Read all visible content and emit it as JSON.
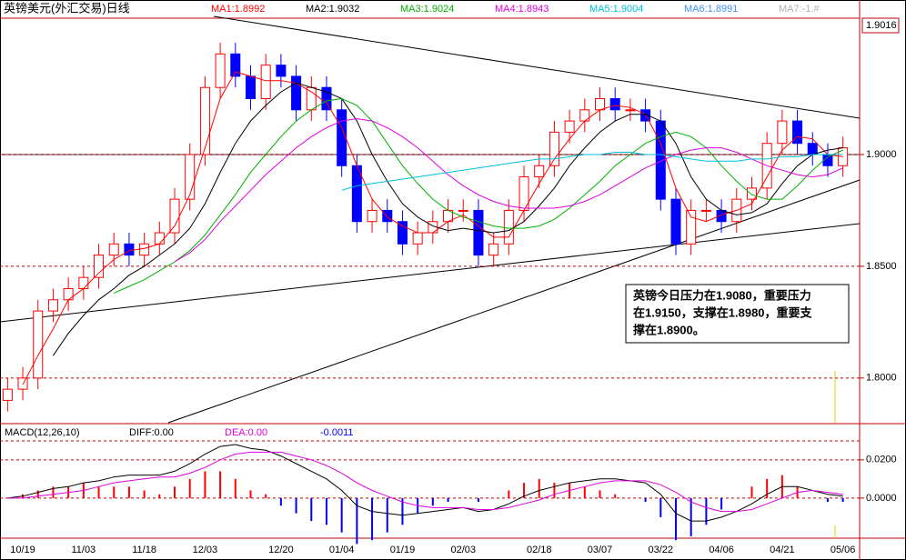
{
  "chart_data": [
    {
      "type": "candlestick",
      "title": "英镑美元(外汇交易)日线",
      "open": [
        1.79,
        1.795,
        1.8,
        1.83,
        1.835,
        1.84,
        1.845,
        1.855,
        1.86,
        1.855,
        1.86,
        1.865,
        1.88,
        1.9,
        1.93,
        1.945,
        1.935,
        1.925,
        1.94,
        1.935,
        1.92,
        1.93,
        1.92,
        1.895,
        1.87,
        1.875,
        1.87,
        1.86,
        1.865,
        1.87,
        1.875,
        1.875,
        1.855,
        1.86,
        1.875,
        1.89,
        1.895,
        1.91,
        1.915,
        1.92,
        1.925,
        1.92,
        1.92,
        1.915,
        1.88,
        1.86,
        1.875,
        1.875,
        1.87,
        1.88,
        1.885,
        1.905,
        1.915,
        1.905,
        1.9,
        1.895
      ],
      "high": [
        1.8,
        1.805,
        1.835,
        1.84,
        1.845,
        1.85,
        1.86,
        1.865,
        1.865,
        1.865,
        1.87,
        1.885,
        1.905,
        1.935,
        1.95,
        1.95,
        1.94,
        1.945,
        1.945,
        1.94,
        1.935,
        1.935,
        1.925,
        1.9,
        1.88,
        1.88,
        1.875,
        1.87,
        1.875,
        1.88,
        1.88,
        1.88,
        1.865,
        1.88,
        1.895,
        1.9,
        1.915,
        1.92,
        1.925,
        1.93,
        1.93,
        1.925,
        1.925,
        1.92,
        1.885,
        1.88,
        1.88,
        1.88,
        1.885,
        1.89,
        1.91,
        1.92,
        1.92,
        1.91,
        1.905,
        1.908
      ],
      "low": [
        1.785,
        1.79,
        1.795,
        1.825,
        1.83,
        1.835,
        1.84,
        1.85,
        1.85,
        1.85,
        1.855,
        1.86,
        1.875,
        1.895,
        1.925,
        1.93,
        1.92,
        1.92,
        1.93,
        1.915,
        1.915,
        1.915,
        1.89,
        1.865,
        1.865,
        1.865,
        1.855,
        1.855,
        1.86,
        1.865,
        1.87,
        1.85,
        1.85,
        1.855,
        1.87,
        1.885,
        1.89,
        1.905,
        1.91,
        1.915,
        1.915,
        1.915,
        1.91,
        1.875,
        1.855,
        1.855,
        1.87,
        1.865,
        1.865,
        1.875,
        1.88,
        1.9,
        1.9,
        1.895,
        1.89,
        1.89
      ],
      "close": [
        1.795,
        1.8,
        1.83,
        1.835,
        1.84,
        1.845,
        1.855,
        1.86,
        1.855,
        1.86,
        1.865,
        1.88,
        1.9,
        1.93,
        1.945,
        1.935,
        1.925,
        1.94,
        1.935,
        1.92,
        1.93,
        1.92,
        1.895,
        1.87,
        1.875,
        1.87,
        1.86,
        1.865,
        1.87,
        1.875,
        1.875,
        1.855,
        1.86,
        1.875,
        1.89,
        1.895,
        1.91,
        1.915,
        1.92,
        1.925,
        1.92,
        1.92,
        1.915,
        1.88,
        1.86,
        1.875,
        1.875,
        1.87,
        1.88,
        1.885,
        1.905,
        1.915,
        1.905,
        1.9,
        1.895,
        1.903
      ],
      "up_color": "#ff0000",
      "down_color": "#0000ff",
      "series": [
        {
          "name": "MA1:1.8992",
          "color": "#ff0000",
          "values": [
            null,
            1.797,
            1.81,
            1.822,
            1.835,
            1.84,
            1.847,
            1.853,
            1.857,
            1.858,
            1.86,
            1.868,
            1.882,
            1.903,
            1.925,
            1.937,
            1.935,
            1.933,
            1.933,
            1.932,
            1.928,
            1.923,
            1.912,
            1.895,
            1.88,
            1.872,
            1.868,
            1.865,
            1.865,
            1.87,
            1.873,
            1.868,
            1.863,
            1.863,
            1.875,
            1.887,
            1.898,
            1.907,
            1.915,
            1.92,
            1.922,
            1.921,
            1.918,
            1.905,
            1.885,
            1.872,
            1.87,
            1.873,
            1.875,
            1.878,
            1.89,
            1.902,
            1.908,
            1.907,
            1.9,
            1.899
          ]
        },
        {
          "name": "MA2:1.9032",
          "color": "#000000",
          "values": [
            null,
            null,
            null,
            1.81,
            1.82,
            1.828,
            1.835,
            1.84,
            1.846,
            1.85,
            1.855,
            1.86,
            1.867,
            1.878,
            1.892,
            1.905,
            1.915,
            1.922,
            1.928,
            1.932,
            1.93,
            1.928,
            1.925,
            1.915,
            1.9,
            1.888,
            1.878,
            1.872,
            1.868,
            1.866,
            1.867,
            1.866,
            1.865,
            1.866,
            1.87,
            1.877,
            1.885,
            1.895,
            1.903,
            1.91,
            1.915,
            1.918,
            1.918,
            1.915,
            1.905,
            1.89,
            1.88,
            1.875,
            1.873,
            1.874,
            1.878,
            1.887,
            1.895,
            1.9,
            1.902,
            1.903
          ]
        },
        {
          "name": "MA3:1.9024",
          "color": "#00b000",
          "values": [
            null,
            null,
            null,
            null,
            null,
            null,
            null,
            1.838,
            1.841,
            1.844,
            1.848,
            1.852,
            1.857,
            1.864,
            1.873,
            1.882,
            1.892,
            1.9,
            1.908,
            1.915,
            1.92,
            1.924,
            1.925,
            1.922,
            1.915,
            1.905,
            1.895,
            1.887,
            1.88,
            1.875,
            1.872,
            1.87,
            1.868,
            1.867,
            1.867,
            1.868,
            1.871,
            1.876,
            1.882,
            1.888,
            1.895,
            1.9,
            1.905,
            1.908,
            1.91,
            1.908,
            1.903,
            1.895,
            1.888,
            1.882,
            1.88,
            1.88,
            1.886,
            1.893,
            1.899,
            1.902
          ]
        },
        {
          "name": "MA4:1.8943",
          "color": "#e000e0",
          "values": [
            null,
            null,
            null,
            null,
            null,
            null,
            null,
            null,
            null,
            null,
            null,
            1.852,
            1.856,
            1.862,
            1.87,
            1.877,
            1.884,
            1.891,
            1.897,
            1.903,
            1.908,
            1.912,
            1.915,
            1.916,
            1.915,
            1.912,
            1.908,
            1.903,
            1.897,
            1.891,
            1.886,
            1.882,
            1.879,
            1.877,
            1.876,
            1.876,
            1.876,
            1.877,
            1.879,
            1.882,
            1.886,
            1.89,
            1.894,
            1.897,
            1.9,
            1.902,
            1.903,
            1.903,
            1.901,
            1.898,
            1.895,
            1.893,
            1.891,
            1.89,
            1.891,
            1.894
          ]
        },
        {
          "name": "MA5:1.9004",
          "color": "#00c0e0",
          "values": [
            null,
            null,
            null,
            null,
            null,
            null,
            null,
            null,
            null,
            null,
            null,
            null,
            null,
            null,
            null,
            null,
            null,
            null,
            null,
            null,
            null,
            null,
            1.884,
            1.886,
            1.887,
            1.888,
            1.889,
            1.89,
            1.891,
            1.892,
            1.893,
            1.894,
            1.895,
            1.896,
            1.897,
            1.898,
            1.898,
            1.899,
            1.9,
            1.9,
            1.901,
            1.901,
            1.9,
            1.9,
            1.899,
            1.898,
            1.897,
            1.897,
            1.897,
            1.898,
            1.898,
            1.899,
            1.899,
            1.9,
            1.9,
            1.9
          ]
        }
      ],
      "extra_legend": [
        {
          "name": "MA6:1.8991",
          "color": "#4090ff"
        },
        {
          "name": "MA7:-1.#",
          "color": "#b0b0b0"
        }
      ],
      "ylim": [
        1.78,
        1.961
      ],
      "yticks": [
        {
          "value": 1.9,
          "label": "1.9000"
        },
        {
          "value": 1.85,
          "label": "1.8500"
        },
        {
          "value": 1.8,
          "label": "1.8000"
        }
      ],
      "grid": true,
      "corner_label": "1.9016",
      "annotation": [
        "英镑今日压力在1.9080，重要压力",
        "在1.9150，支撑在1.8980，重要支",
        "撑在1.8900。"
      ]
    },
    {
      "type": "macd",
      "title": "MACD(12,26,10)",
      "categories": [
        null,
        "10/19",
        null,
        null,
        null,
        "11/03",
        null,
        null,
        null,
        "11/18",
        null,
        null,
        null,
        "12/03",
        null,
        null,
        null,
        null,
        "12/20",
        null,
        null,
        null,
        "01/04",
        null,
        null,
        null,
        "01/19",
        null,
        null,
        null,
        "02/03",
        null,
        null,
        null,
        null,
        "02/18",
        null,
        null,
        null,
        "03/07",
        null,
        null,
        null,
        "03/22",
        null,
        null,
        null,
        "04/06",
        null,
        null,
        null,
        "04/21",
        null,
        null,
        null,
        "05/06"
      ],
      "values": [
        0.0,
        0.002,
        0.004,
        0.006,
        0.006,
        0.008,
        0.006,
        0.006,
        0.006,
        0.004,
        0.002,
        0.006,
        0.01,
        0.014,
        0.014,
        0.01,
        0.004,
        0.002,
        -0.004,
        -0.008,
        -0.012,
        -0.014,
        -0.018,
        -0.024,
        -0.022,
        -0.018,
        -0.014,
        -0.008,
        -0.004,
        -0.002,
        0.0,
        -0.002,
        0.0,
        0.004,
        0.008,
        0.01,
        0.008,
        0.008,
        0.006,
        0.004,
        0.002,
        0.0,
        -0.002,
        -0.01,
        -0.022,
        -0.02,
        -0.014,
        -0.006,
        0.0,
        0.006,
        0.01,
        0.012,
        0.006,
        0.0,
        -0.002,
        -0.002
      ],
      "up_color": "#ff0000",
      "down_color": "#0000ff",
      "series": [
        {
          "name": "DIFF:0.00",
          "color": "#000000",
          "values": [
            0.0,
            0.001,
            0.003,
            0.005,
            0.006,
            0.008,
            0.009,
            0.011,
            0.012,
            0.012,
            0.012,
            0.014,
            0.018,
            0.023,
            0.027,
            0.028,
            0.026,
            0.025,
            0.022,
            0.018,
            0.014,
            0.01,
            0.004,
            -0.004,
            -0.007,
            -0.008,
            -0.009,
            -0.008,
            -0.007,
            -0.006,
            -0.005,
            -0.007,
            -0.006,
            -0.003,
            0.001,
            0.004,
            0.006,
            0.008,
            0.009,
            0.01,
            0.01,
            0.009,
            0.008,
            0.002,
            -0.008,
            -0.012,
            -0.012,
            -0.01,
            -0.007,
            -0.003,
            0.002,
            0.006,
            0.006,
            0.004,
            0.002,
            0.001
          ]
        },
        {
          "name": "DEA:0.00",
          "color": "#e000e0",
          "values": [
            0.0,
            0.0,
            0.001,
            0.002,
            0.003,
            0.004,
            0.006,
            0.008,
            0.009,
            0.01,
            0.011,
            0.011,
            0.013,
            0.016,
            0.02,
            0.023,
            0.024,
            0.024,
            0.024,
            0.022,
            0.02,
            0.017,
            0.013,
            0.008,
            0.004,
            0.001,
            -0.002,
            -0.004,
            -0.005,
            -0.005,
            -0.005,
            -0.006,
            -0.006,
            -0.005,
            -0.003,
            -0.001,
            0.002,
            0.004,
            0.006,
            0.008,
            0.009,
            0.009,
            0.009,
            0.007,
            0.003,
            -0.002,
            -0.005,
            -0.007,
            -0.007,
            -0.006,
            -0.003,
            0.0,
            0.003,
            0.004,
            0.003,
            0.002
          ]
        }
      ],
      "readout": {
        "value": -0.0011,
        "label": "-0.0011"
      },
      "ylim": [
        -0.021,
        0.038
      ],
      "yticks": [
        {
          "value": 0.02,
          "label": "0.0200"
        },
        {
          "value": 0.0,
          "label": "0.0000"
        }
      ],
      "grid": true
    }
  ]
}
